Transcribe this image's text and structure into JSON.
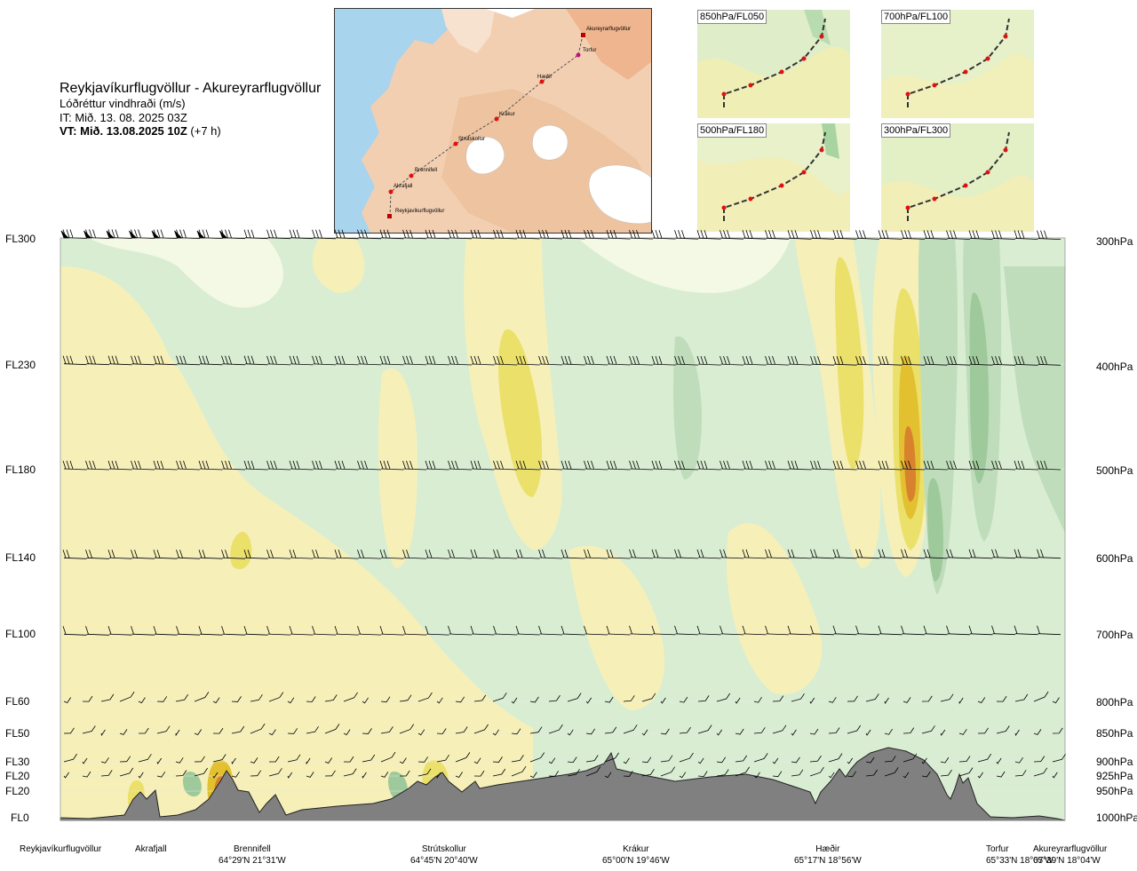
{
  "header": {
    "route": "Reykjavíkurflugvöllur - Akureyrarflugvöllur",
    "parameter": "Lóðréttur vindhraði (m/s)",
    "issue_time": "IT: Mið. 13. 08. 2025 03Z",
    "valid_prefix": "VT: Mið. 13.08.2025 10Z",
    "valid_suffix": "(+7 h)"
  },
  "map": {
    "waypoints": [
      {
        "name": "Akureyrarflugvöllur"
      },
      {
        "name": "Torfur"
      },
      {
        "name": "Hæðir"
      },
      {
        "name": "Krákur"
      },
      {
        "name": "Strútskollur"
      },
      {
        "name": "Brennifell"
      },
      {
        "name": "Akrafjall"
      },
      {
        "name": "Reykjavíkurflugvöllur"
      }
    ]
  },
  "minimaps": [
    {
      "label": "850hPa/FL050"
    },
    {
      "label": "700hPa/FL100"
    },
    {
      "label": "500hPa/FL180"
    },
    {
      "label": "300hPa/FL300"
    }
  ],
  "chart_data": {
    "type": "heatmap",
    "levels": [
      {
        "fl": "FL300",
        "hpa": "300hPa"
      },
      {
        "fl": "FL230",
        "hpa": "400hPa"
      },
      {
        "fl": "FL180",
        "hpa": "500hPa"
      },
      {
        "fl": "FL140",
        "hpa": "600hPa"
      },
      {
        "fl": "FL100",
        "hpa": "700hPa"
      },
      {
        "fl": "FL60",
        "hpa": "800hPa"
      },
      {
        "fl": "FL50",
        "hpa": "850hPa"
      },
      {
        "fl": "FL30",
        "hpa": "900hPa"
      },
      {
        "fl": "FL20",
        "hpa": "925hPa"
      },
      {
        "fl": "FL20",
        "hpa": "950hPa"
      },
      {
        "fl": "FL0",
        "hpa": "1000hPa"
      }
    ],
    "locations": [
      {
        "name": "Reykjavíkurflugvöllur",
        "coords": ""
      },
      {
        "name": "Akrafjall",
        "coords": ""
      },
      {
        "name": "Brennifell",
        "coords": "64°29'N 21°31'W"
      },
      {
        "name": "Strútskollur",
        "coords": "64°45'N 20°40'W"
      },
      {
        "name": "Krákur",
        "coords": "65°00'N 19°46'W"
      },
      {
        "name": "Hæðir",
        "coords": "65°17'N 18°56'W"
      },
      {
        "name": "Torfur",
        "coords": "65°33'N 18°07'W"
      },
      {
        "name": "Akureyrarflugvöllur",
        "coords": "65°39'N 18°04'W"
      }
    ],
    "colors": {
      "strong_down": "#9ec99b",
      "moderate_down": "#bfddbb",
      "weak_down": "#d9edd3",
      "neutral": "#f4f9e6",
      "weak_up": "#f6f0b8",
      "moderate_up": "#ebe06a",
      "strong_up": "#e2c030",
      "very_strong_up": "#d8822e",
      "terrain": "#808080"
    }
  }
}
